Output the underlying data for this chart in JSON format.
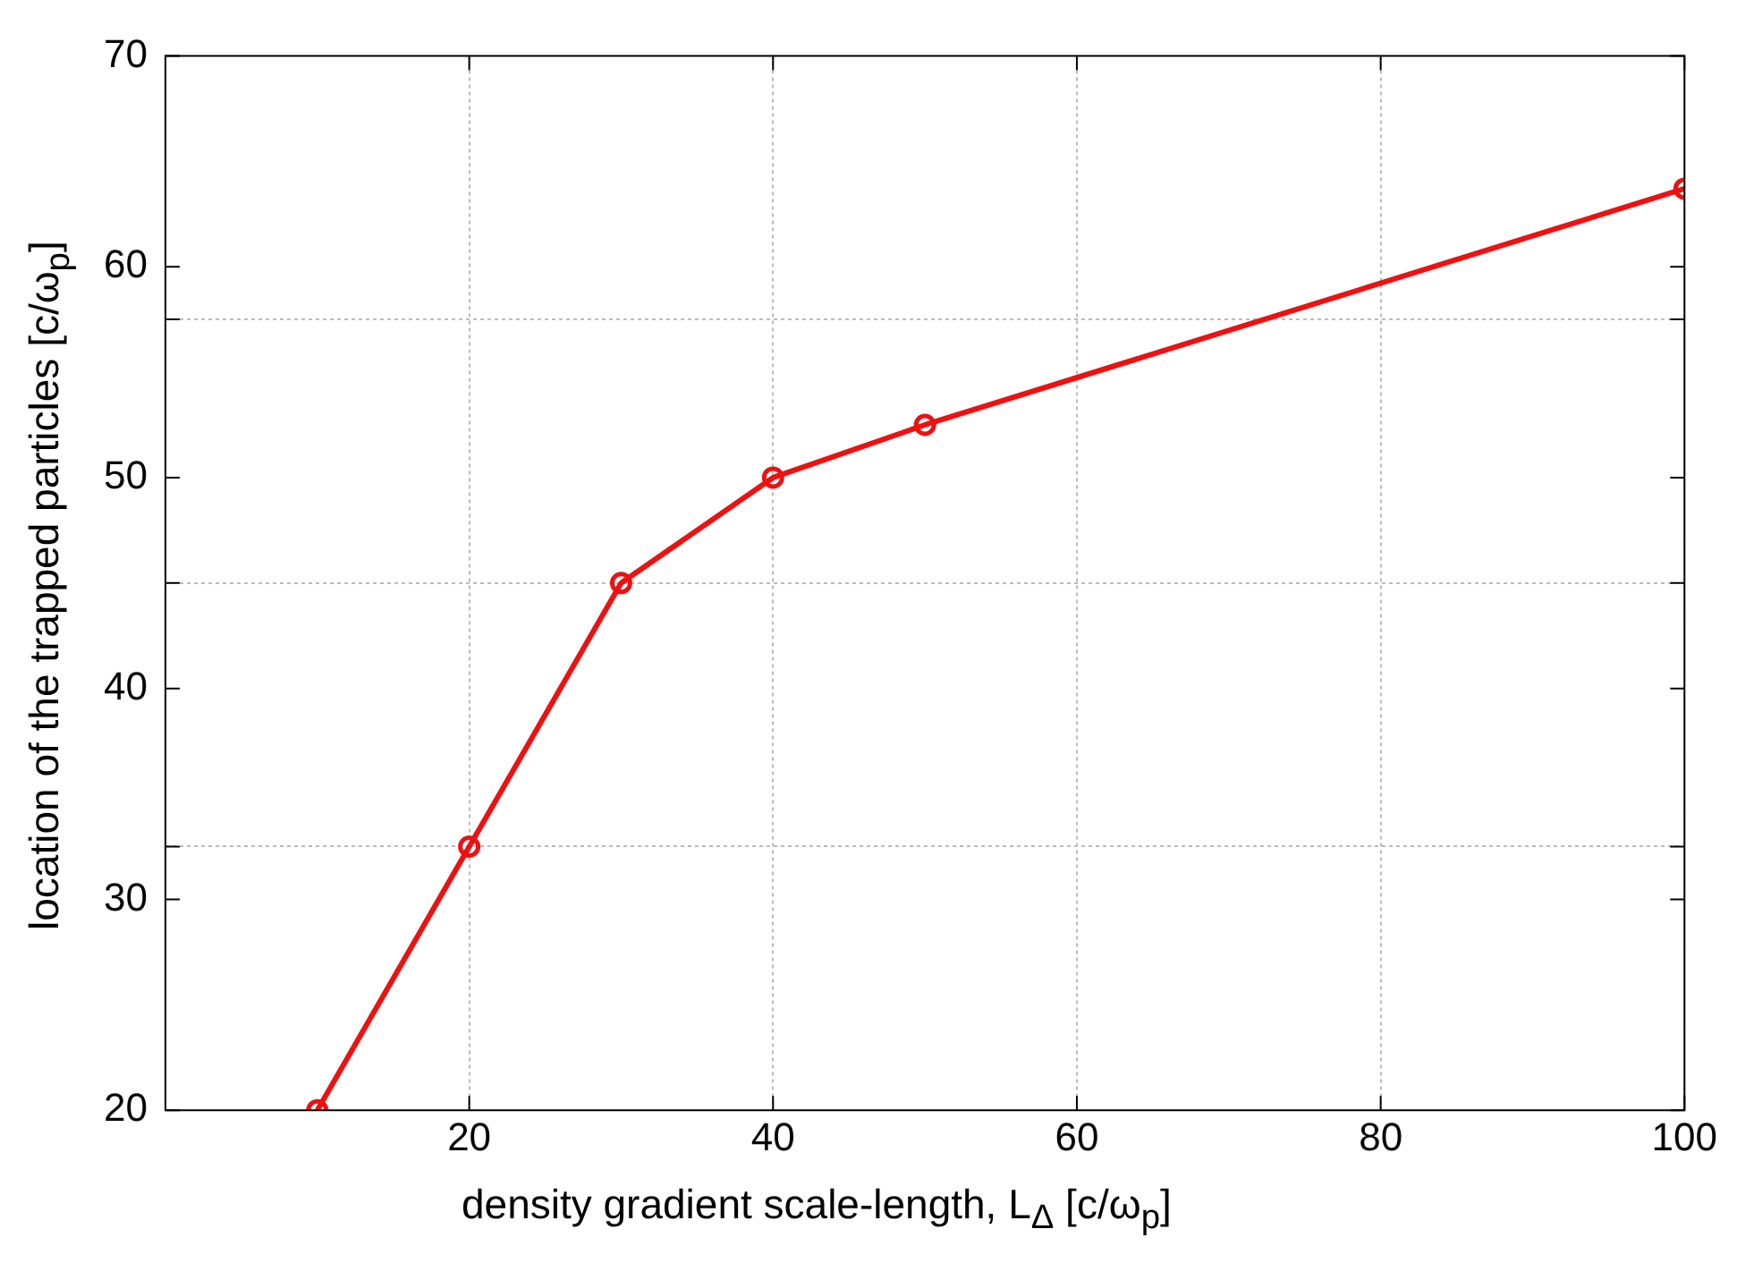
{
  "chart_data": {
    "type": "line",
    "xlabel": "density gradient scale-length, L$_{Δ}$ [c/ω$_{p}$]",
    "ylabel": "location of the trapped particles  [c/ω$_{p}$]",
    "x": [
      10,
      20,
      30,
      40,
      50,
      100
    ],
    "series": [
      {
        "color": "#ee1111",
        "values": [
          20,
          32.5,
          45,
          50,
          52.5,
          63.7
        ]
      }
    ],
    "xlim": [
      0,
      100
    ],
    "xticks": [
      20,
      40,
      60,
      80,
      100
    ],
    "ylim": [
      20,
      70
    ],
    "yticks": [
      20,
      30,
      {
        "value": 32.5,
        "label": null
      },
      40,
      {
        "value": 45,
        "label": null
      },
      50,
      {
        "value": 57.5,
        "label": null
      },
      60,
      70
    ],
    "grid": true,
    "marker": "circle",
    "line_style": "solid",
    "legend": false
  }
}
